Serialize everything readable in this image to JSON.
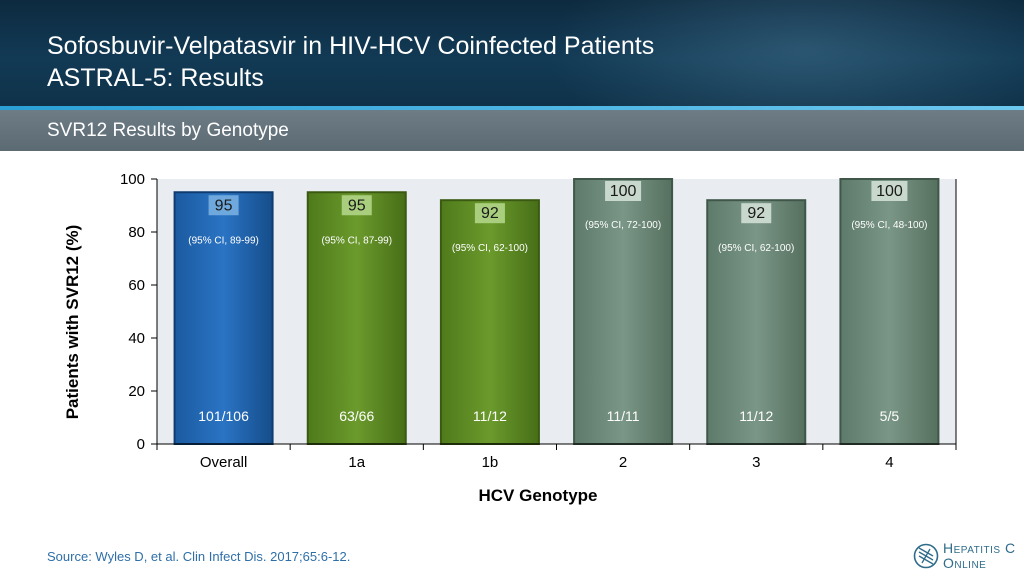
{
  "slide": {
    "title_line1": "Sofosbuvir-Velpatasvir in HIV-HCV Coinfected Patients",
    "title_line2": "ASTRAL-5: Results",
    "subtitle": "SVR12 Results by Genotype",
    "source": "Source: Wyles D, et al. Clin Infect Dis. 2017;65:6-12.",
    "logo_line1": "Hepatitis C",
    "logo_line2": "Online",
    "colors": {
      "header": "#123a55",
      "accent": "#2b9fd6",
      "subheader": "#66747e",
      "source_text": "#2f6fa8"
    }
  },
  "chart_data": {
    "type": "bar",
    "categories": [
      "Overall",
      "1a",
      "1b",
      "2",
      "3",
      "4"
    ],
    "values": [
      95,
      95,
      92,
      100,
      92,
      100
    ],
    "value_labels": [
      "95",
      "95",
      "92",
      "100",
      "92",
      "100"
    ],
    "ci_labels": [
      "(95% CI, 89-99)",
      "(95% CI, 87-99)",
      "(95% CI, 62-100)",
      "(95% CI, 72-100)",
      "(95% CI, 62-100)",
      "(95% CI, 48-100)"
    ],
    "counts": [
      "101/106",
      "63/66",
      "11/12",
      "11/11",
      "11/12",
      "5/5"
    ],
    "bar_colors": [
      "#1a63ad",
      "#5c8a23",
      "#5c8a23",
      "#6c8a78",
      "#6c8a78",
      "#6c8a78"
    ],
    "xlabel": "HCV Genotype",
    "ylabel": "Patients with SVR12 (%)",
    "ylim": [
      0,
      100
    ],
    "yticks": [
      "0",
      "20",
      "40",
      "60",
      "80",
      "100"
    ],
    "plot_background": "#e9ecf0",
    "grid": false
  }
}
